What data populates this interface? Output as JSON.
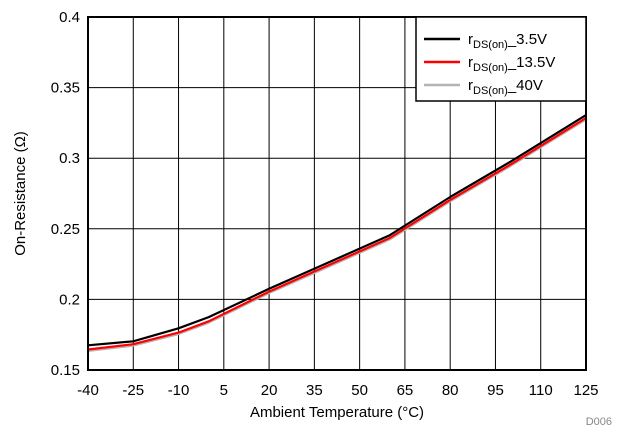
{
  "chart_data": {
    "type": "line",
    "xlabel": "Ambient Temperature (°C)",
    "ylabel": "On-Resistance (Ω)",
    "x_ticks": [
      "-40",
      "-25",
      "-10",
      "5",
      "20",
      "35",
      "50",
      "65",
      "80",
      "95",
      "110",
      "125"
    ],
    "y_ticks": [
      "0.15",
      "0.2",
      "0.25",
      "0.3",
      "0.35",
      "0.4"
    ],
    "xlim": [
      -40,
      125
    ],
    "ylim": [
      0.15,
      0.4
    ],
    "grid": true,
    "legend_position": "top-right",
    "figure_code": "D006",
    "series": [
      {
        "name_main": "r",
        "name_sub": "DS(on)",
        "name_suffix": "_3.5V",
        "color": "#000000",
        "x": [
          -40,
          -25,
          -10,
          0,
          20,
          40,
          60,
          80,
          100,
          125
        ],
        "y": [
          0.1675,
          0.1703,
          0.1795,
          0.1875,
          0.2075,
          0.2265,
          0.2455,
          0.2725,
          0.2975,
          0.3305
        ]
      },
      {
        "name_main": "r",
        "name_sub": "DS(on)",
        "name_suffix": "_13.5V",
        "color": "#ff0000",
        "x": [
          -40,
          -25,
          -10,
          0,
          20,
          40,
          60,
          80,
          100,
          125
        ],
        "y": [
          0.1645,
          0.1683,
          0.1765,
          0.1845,
          0.2055,
          0.2245,
          0.2435,
          0.2705,
          0.2955,
          0.3285
        ]
      },
      {
        "name_main": "r",
        "name_sub": "DS(on)",
        "name_suffix": "_40V",
        "color": "#b4b4b4",
        "x": [
          -40,
          -25,
          -10,
          0,
          20,
          40,
          60,
          80,
          100,
          125
        ],
        "y": [
          0.1635,
          0.1673,
          0.1755,
          0.1835,
          0.2045,
          0.2235,
          0.2425,
          0.2695,
          0.2945,
          0.3275
        ]
      }
    ]
  }
}
